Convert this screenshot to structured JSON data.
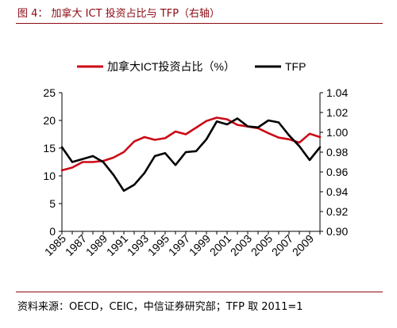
{
  "figure": {
    "title": "图 4：   加拿大 ICT 投资占比与 TFP（右轴）",
    "source": "资料来源：OECD，CEIC，中信证券研究部；TFP 取 2011=1"
  },
  "colors": {
    "ict": "#cc0a16",
    "tfp": "#000000",
    "header": "#8b0a14"
  },
  "chart_data": {
    "type": "line",
    "x": [
      1985,
      1986,
      1987,
      1988,
      1989,
      1990,
      1991,
      1992,
      1993,
      1994,
      1995,
      1996,
      1997,
      1998,
      1999,
      2000,
      2001,
      2002,
      2003,
      2004,
      2005,
      2006,
      2007,
      2008,
      2009,
      2010
    ],
    "x_tick_labels": [
      "1985",
      "1987",
      "1989",
      "1991",
      "1993",
      "1995",
      "1997",
      "1999",
      "2001",
      "2003",
      "2005",
      "2007",
      "2009"
    ],
    "series": [
      {
        "name": "加拿大ICT投资占比（%）",
        "axis": "left",
        "values": [
          11.0,
          11.5,
          12.5,
          12.5,
          12.7,
          13.3,
          14.3,
          16.2,
          17.0,
          16.5,
          16.8,
          18.0,
          17.5,
          18.7,
          19.9,
          20.5,
          20.2,
          19.2,
          18.9,
          18.6,
          17.7,
          16.9,
          16.6,
          16.0,
          17.6,
          17.0
        ]
      },
      {
        "name": "TFP",
        "axis": "right",
        "values": [
          0.985,
          0.97,
          0.973,
          0.976,
          0.97,
          0.957,
          0.941,
          0.947,
          0.959,
          0.976,
          0.979,
          0.967,
          0.98,
          0.981,
          0.993,
          1.011,
          1.008,
          1.014,
          1.006,
          1.005,
          1.012,
          1.01,
          0.997,
          0.986,
          0.972,
          0.985
        ]
      }
    ],
    "y_left": {
      "lim": [
        0,
        25
      ],
      "ticks": [
        "0",
        "5",
        "10",
        "15",
        "20",
        "25"
      ]
    },
    "y_right": {
      "lim": [
        0.9,
        1.04
      ],
      "ticks": [
        "0.90",
        "0.92",
        "0.94",
        "0.96",
        "0.98",
        "1.00",
        "1.02",
        "1.04"
      ]
    },
    "legend_position": "top",
    "grid": false
  }
}
